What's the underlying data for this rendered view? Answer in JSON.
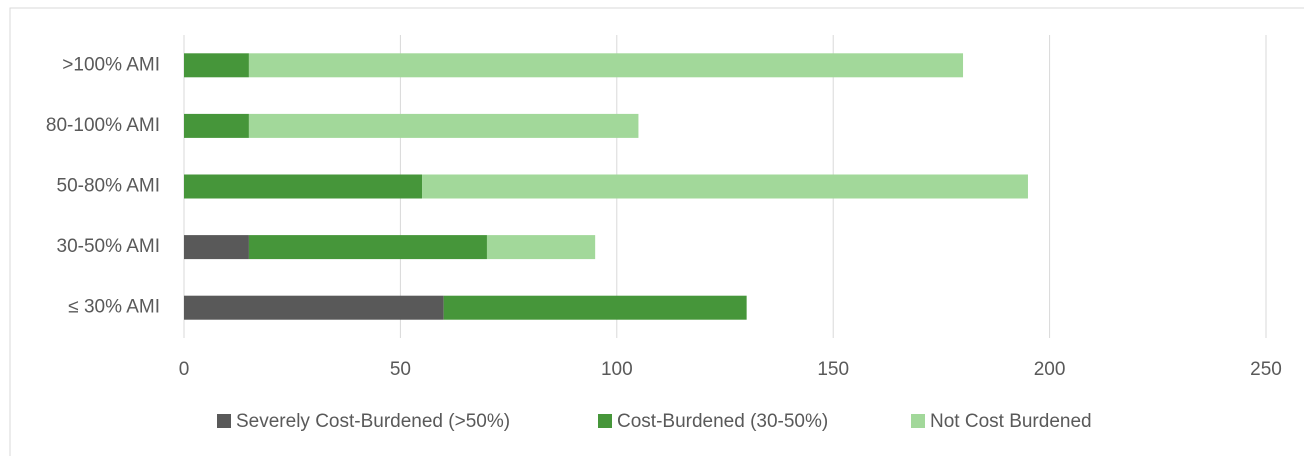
{
  "chart_data": {
    "type": "stacked-barh",
    "categories": [
      ">100% AMI",
      "80-100% AMI",
      "50-80% AMI",
      "30-50% AMI",
      "≤ 30% AMI"
    ],
    "series": [
      {
        "name": "Severely Cost-Burdened (>50%)",
        "color": "#595959",
        "values": [
          0,
          0,
          0,
          15,
          60
        ]
      },
      {
        "name": "Cost-Burdened (30-50%)",
        "color": "#46963a",
        "values": [
          15,
          15,
          55,
          55,
          70
        ]
      },
      {
        "name": "Not Cost Burdened",
        "color": "#a2d89a",
        "values": [
          165,
          90,
          140,
          25,
          0
        ]
      }
    ],
    "xlim": [
      0,
      250
    ],
    "xticks": [
      0,
      50,
      100,
      150,
      200,
      250
    ],
    "grid": true,
    "legend": "bottom"
  }
}
